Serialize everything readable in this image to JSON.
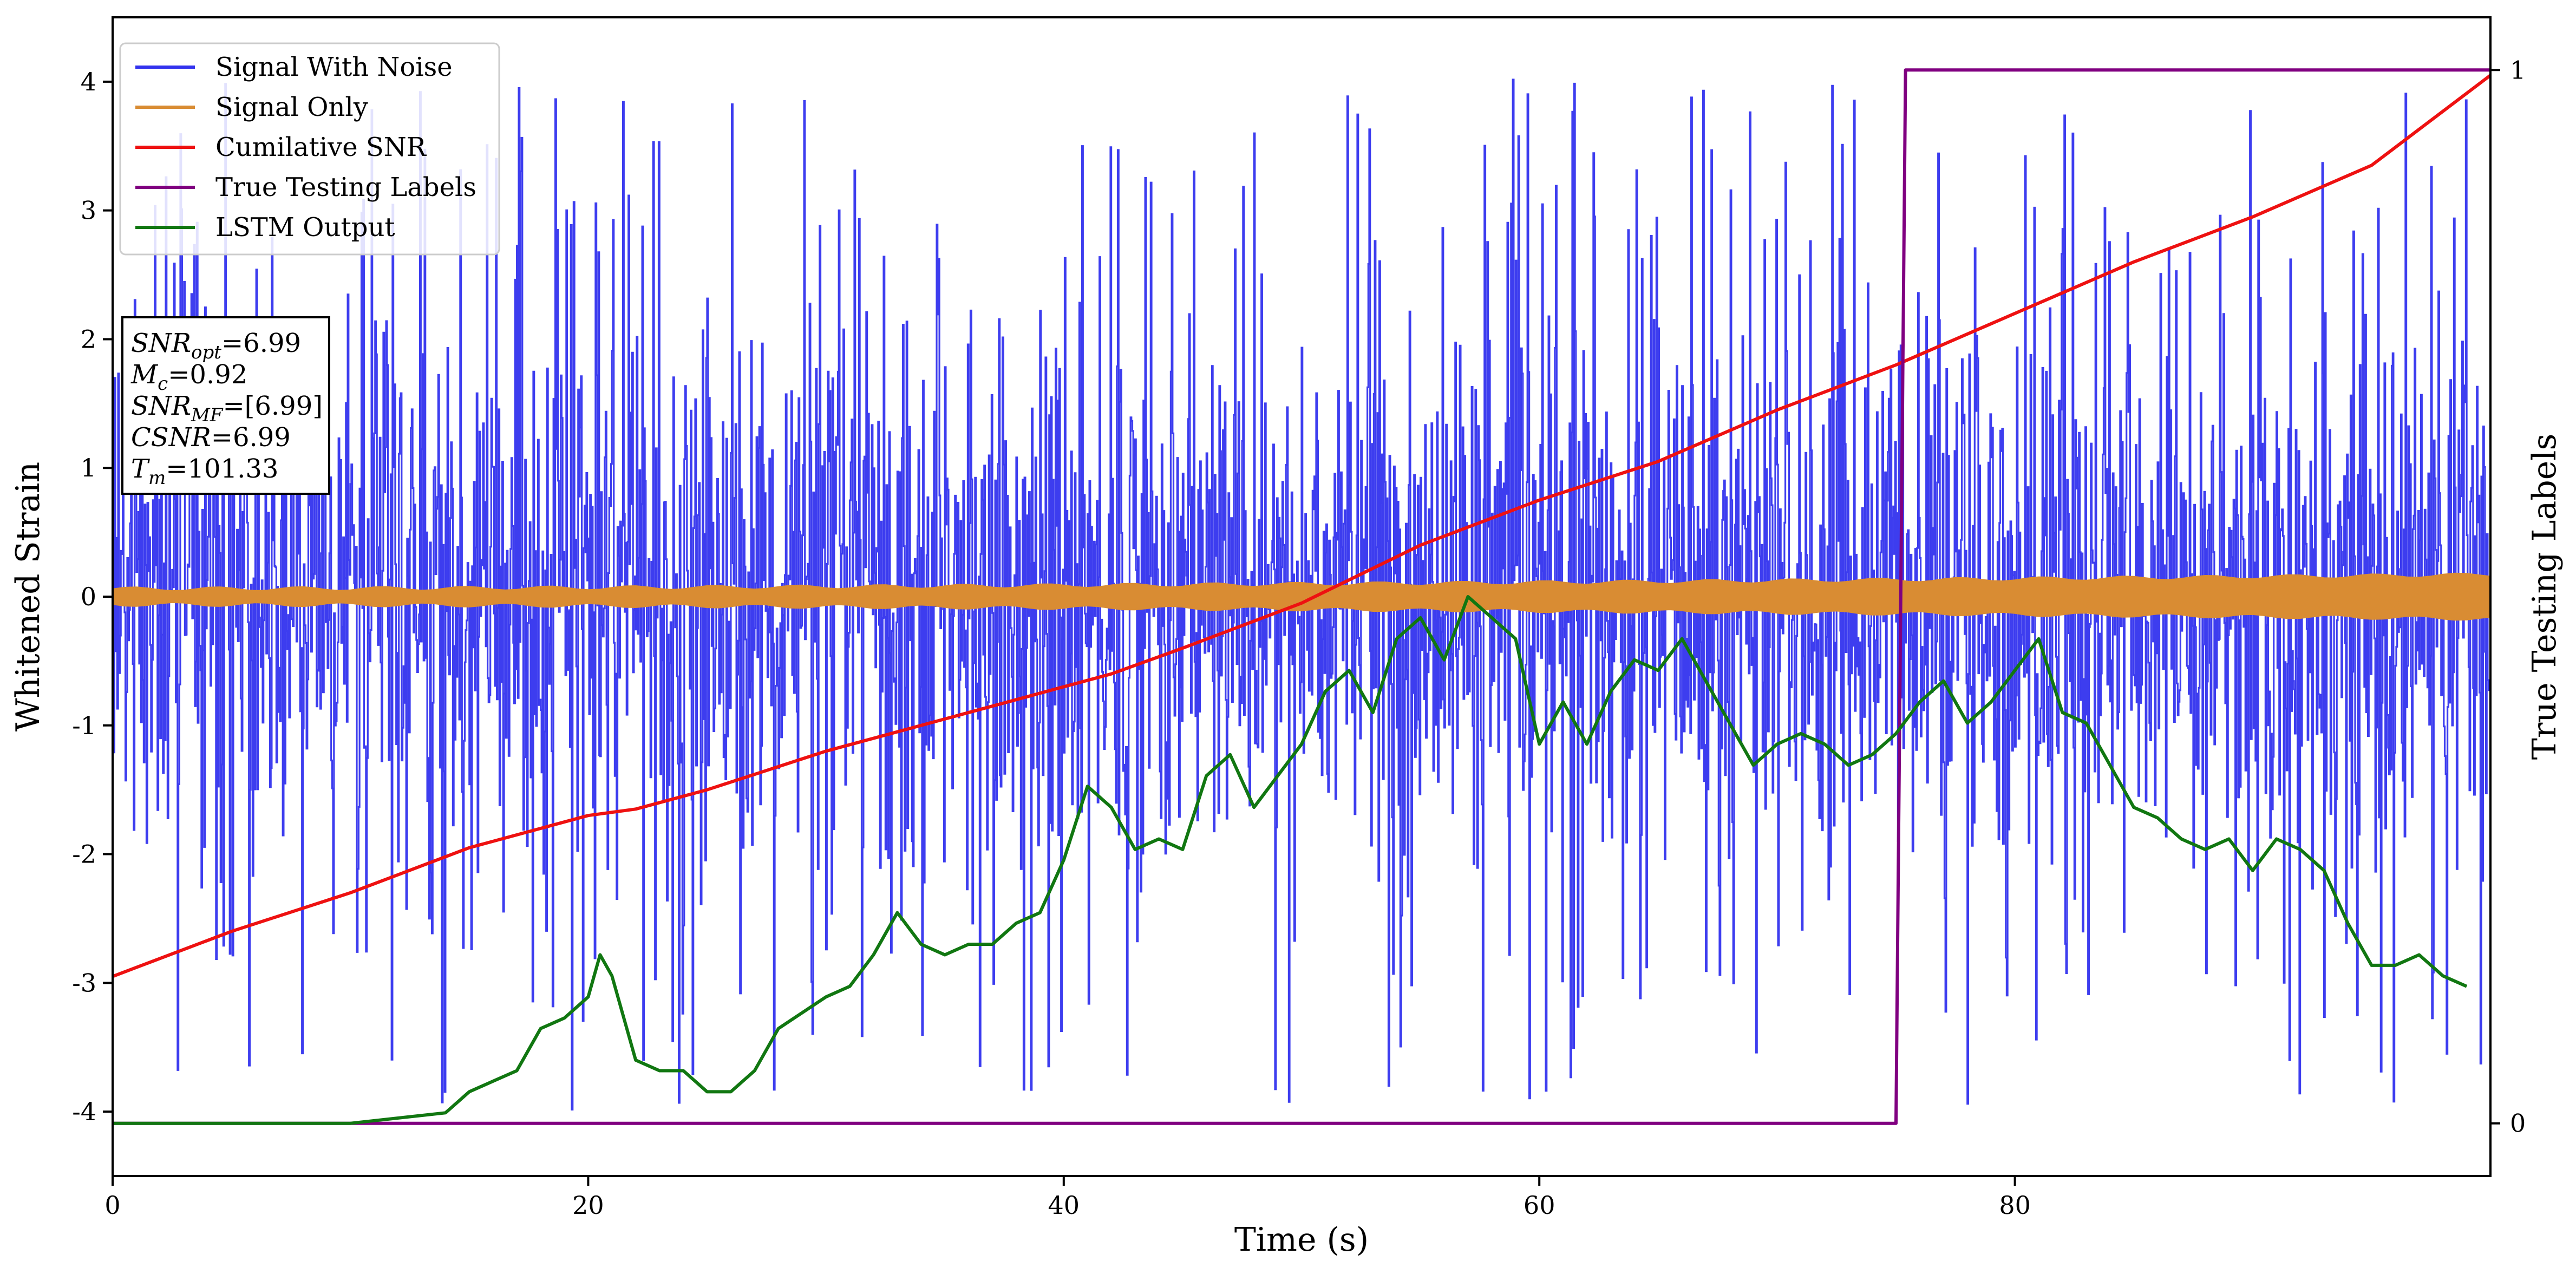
{
  "chart_data": {
    "type": "line",
    "xlabel": "Time (s)",
    "ylabel": "Whitened Strain",
    "y2label": "True Testing Labels",
    "xlim": [
      0,
      100
    ],
    "ylim": [
      -4.5,
      4.5
    ],
    "y2lim": [
      -0.05,
      1.05
    ],
    "xticks": [
      "0",
      "20",
      "40",
      "60",
      "80"
    ],
    "yticks": [
      "-4",
      "-3",
      "-2",
      "-1",
      "0",
      "1",
      "2",
      "3",
      "4"
    ],
    "y2ticks": [
      "0",
      "1"
    ],
    "legend_position": "upper-left",
    "colors": {
      "signal_with_noise": "#3333ee",
      "signal_only": "#d98c33",
      "cumulative_snr": "#ee1111",
      "true_labels": "#800080",
      "lstm_output": "#117711"
    },
    "series": [
      {
        "name": "Signal With Noise",
        "kind": "noise",
        "color": "#3333ee",
        "approx_range": [
          -4.0,
          4.1
        ]
      },
      {
        "name": "Signal Only",
        "kind": "band",
        "color": "#d98c33",
        "amplitude_start": 0.06,
        "amplitude_end": 0.17
      },
      {
        "name": "Cumilative SNR",
        "color": "#ee1111",
        "x": [
          0,
          5,
          10,
          15,
          20,
          22,
          25,
          30,
          35,
          40,
          42,
          45,
          50,
          55,
          60,
          65,
          70,
          75,
          80,
          85,
          90,
          95,
          100
        ],
        "y": [
          -2.95,
          -2.6,
          -2.3,
          -1.95,
          -1.7,
          -1.65,
          -1.5,
          -1.2,
          -0.95,
          -0.7,
          -0.6,
          -0.4,
          -0.05,
          0.4,
          0.75,
          1.05,
          1.45,
          1.8,
          2.2,
          2.6,
          2.95,
          3.35,
          4.05
        ]
      },
      {
        "name": "True Testing Labels",
        "color": "#800080",
        "x": [
          0,
          75,
          75.4,
          100
        ],
        "y": [
          0,
          0,
          1,
          1
        ]
      },
      {
        "name": "LSTM Output",
        "color": "#117711",
        "x": [
          0,
          10,
          14,
          15,
          16,
          17,
          18,
          19,
          20,
          20.5,
          21,
          22,
          23,
          24,
          25,
          26,
          27,
          28,
          30,
          31,
          32,
          33,
          34,
          35,
          36,
          37,
          38,
          39,
          40,
          41,
          42,
          43,
          44,
          45,
          46,
          47,
          48,
          49,
          50,
          51,
          52,
          53,
          54,
          55,
          56,
          57,
          58,
          59,
          60,
          61,
          62,
          63,
          64,
          65,
          66,
          67,
          68,
          69,
          70,
          71,
          72,
          73,
          74,
          75,
          76,
          77,
          78,
          79,
          80,
          81,
          82,
          83,
          84,
          85,
          86,
          87,
          88,
          89,
          90,
          91,
          92,
          93,
          94,
          95,
          96,
          97,
          98,
          99
        ],
        "y": [
          0.0,
          0.0,
          0.01,
          0.03,
          0.04,
          0.05,
          0.09,
          0.1,
          0.12,
          0.16,
          0.14,
          0.06,
          0.05,
          0.05,
          0.03,
          0.03,
          0.05,
          0.09,
          0.12,
          0.13,
          0.16,
          0.2,
          0.17,
          0.16,
          0.17,
          0.17,
          0.19,
          0.2,
          0.25,
          0.32,
          0.3,
          0.26,
          0.27,
          0.26,
          0.33,
          0.35,
          0.3,
          0.33,
          0.36,
          0.41,
          0.43,
          0.39,
          0.46,
          0.48,
          0.44,
          0.5,
          0.48,
          0.46,
          0.36,
          0.4,
          0.36,
          0.41,
          0.44,
          0.43,
          0.46,
          0.42,
          0.38,
          0.34,
          0.36,
          0.37,
          0.36,
          0.34,
          0.35,
          0.37,
          0.4,
          0.42,
          0.38,
          0.4,
          0.43,
          0.46,
          0.39,
          0.38,
          0.34,
          0.3,
          0.29,
          0.27,
          0.26,
          0.27,
          0.24,
          0.27,
          0.26,
          0.24,
          0.19,
          0.15,
          0.15,
          0.16,
          0.14,
          0.13
        ]
      }
    ],
    "annotation": {
      "lines": [
        {
          "base": "SNR",
          "sub": "opt",
          "value": "=6.99"
        },
        {
          "base": "M",
          "sub": "c",
          "value": "=0.92"
        },
        {
          "base": "SNR",
          "sub": "MF",
          "value": "=[6.99]"
        },
        {
          "base": "CSNR",
          "sub": "",
          "value": "=6.99"
        },
        {
          "base": "T",
          "sub": "m",
          "value": "=101.33"
        }
      ]
    }
  }
}
